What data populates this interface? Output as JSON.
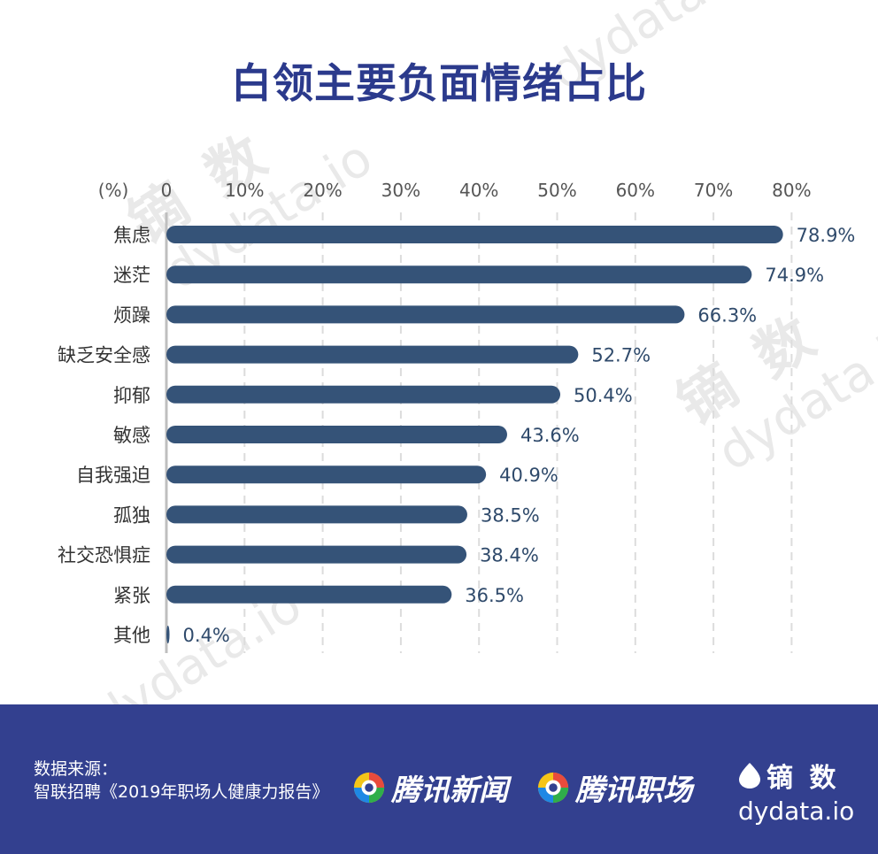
{
  "title": "白领主要负面情绪占比",
  "watermark": {
    "cn": "镝 数",
    "en": "dydata.io"
  },
  "chart_data": {
    "type": "bar",
    "orientation": "horizontal",
    "unit_label": "(%)",
    "xlim": [
      0,
      80
    ],
    "xticks": [
      "0",
      "10%",
      "20%",
      "30%",
      "40%",
      "50%",
      "60%",
      "70%",
      "80%"
    ],
    "grid": true,
    "categories": [
      "焦虑",
      "迷茫",
      "烦躁",
      "缺乏安全感",
      "抑郁",
      "敏感",
      "自我强迫",
      "孤独",
      "社交恐惧症",
      "紧张",
      "其他"
    ],
    "values": [
      78.9,
      74.9,
      66.3,
      52.7,
      50.4,
      43.6,
      40.9,
      38.5,
      38.4,
      36.5,
      0.4
    ],
    "value_labels": [
      "78.9%",
      "74.9%",
      "66.3%",
      "52.7%",
      "50.4%",
      "43.6%",
      "40.9%",
      "38.5%",
      "38.4%",
      "36.5%",
      "0.4%"
    ],
    "bar_color": "#355378"
  },
  "footer": {
    "source_label": "数据来源：",
    "source_text": "智联招聘《2019年职场人健康力报告》",
    "brand1": "腾讯新闻",
    "brand2": "腾讯职场",
    "dy_cn": "镝 数",
    "dy_en": "dydata.io",
    "background": "#33408f"
  }
}
